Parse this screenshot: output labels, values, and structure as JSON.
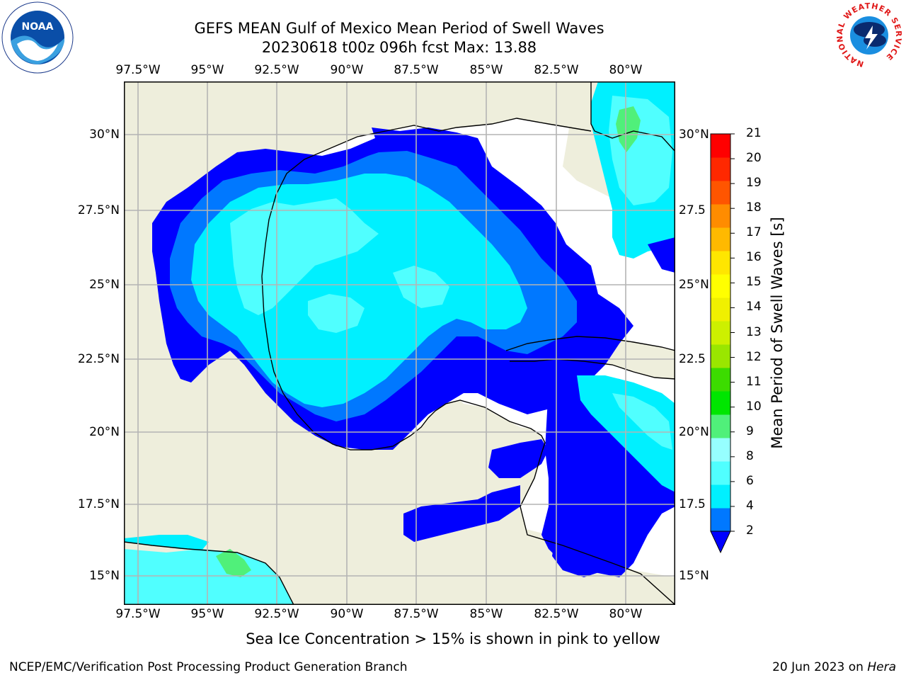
{
  "header": {
    "title_line1": "GEFS MEAN Gulf of Mexico Mean Period of Swell Waves",
    "title_line2": "20230618 t00z 096h fcst   Max: 13.88"
  },
  "map": {
    "lon_labels": [
      "97.5°W",
      "95°W",
      "92.5°W",
      "90°W",
      "87.5°W",
      "85°W",
      "82.5°W",
      "80°W"
    ],
    "lat_labels_left": [
      "30°N",
      "27.5°N",
      "25°N",
      "22.5°N",
      "20°N",
      "17.5°N",
      "15°N"
    ],
    "lat_labels_right": [
      "30°N",
      "27.5",
      "25°N",
      "22.5",
      "20°N",
      "17.5",
      "15°N"
    ],
    "colors": {
      "land": "#eeeedc",
      "coast": "#000000",
      "grid": "#b4b4b4"
    }
  },
  "colorbar": {
    "label": "Mean Period of Swell Waves [s]",
    "ticks": [
      "21",
      "20",
      "19",
      "18",
      "17",
      "16",
      "15",
      "14",
      "13",
      "12",
      "11",
      "10",
      "9",
      "8",
      "6",
      "4",
      "2"
    ],
    "colors": [
      "#0000ff",
      "#0078ff",
      "#00f0ff",
      "#50ffff",
      "#96ffff",
      "#50f07a",
      "#00e600",
      "#3cdc00",
      "#9ae600",
      "#cdf000",
      "#f0f000",
      "#ffff00",
      "#ffe600",
      "#ffb900",
      "#ff8c00",
      "#ff5500",
      "#ff2800",
      "#ff0000"
    ]
  },
  "notes": {
    "sea_ice": "Sea Ice Concentration > 15% is shown in pink to yellow"
  },
  "footer": {
    "left": "NCEP/EMC/Verification Post Processing Product Generation Branch",
    "right_date": "20 Jun 2023 on",
    "right_host": "Hera"
  },
  "logos": {
    "noaa_text": "NOAA",
    "nws_ring": "NATIONAL WEATHER SERVICE"
  }
}
